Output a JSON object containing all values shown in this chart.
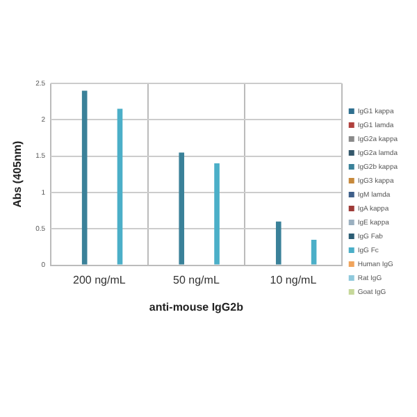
{
  "chart_data": {
    "type": "bar",
    "xlabel": "anti-mouse IgG2b",
    "ylabel": "Abs (405nm)",
    "categories": [
      "200 ng/mL",
      "50 ng/mL",
      "10 ng/mL"
    ],
    "ylim": [
      0,
      2.5
    ],
    "yticks": [
      0,
      0.5,
      1,
      1.5,
      2,
      2.5
    ],
    "grid": true,
    "legend": "right",
    "series": [
      {
        "name": "IgG1 kappa",
        "color": "#2f6f8f",
        "values": [
          0,
          0,
          0
        ]
      },
      {
        "name": "IgG1 lamda",
        "color": "#b0413e",
        "values": [
          0,
          0,
          0
        ]
      },
      {
        "name": "IgG2a kappa",
        "color": "#8a8a8a",
        "values": [
          0,
          0,
          0
        ]
      },
      {
        "name": "IgG2a lamda",
        "color": "#35586b",
        "values": [
          0,
          0,
          0
        ]
      },
      {
        "name": "IgG2b kappa",
        "color": "#3a8199",
        "values": [
          2.4,
          1.55,
          0.6
        ]
      },
      {
        "name": "IgG3 kappa",
        "color": "#c7893c",
        "values": [
          0,
          0,
          0
        ]
      },
      {
        "name": "IgM lamda",
        "color": "#3e5f8a",
        "values": [
          0,
          0,
          0
        ]
      },
      {
        "name": "IgA kappa",
        "color": "#9e3b38",
        "values": [
          0,
          0,
          0
        ]
      },
      {
        "name": "IgE kappa",
        "color": "#9bb0c0",
        "values": [
          0,
          0,
          0
        ]
      },
      {
        "name": "IgG Fab",
        "color": "#2c5d74",
        "values": [
          0,
          0,
          0
        ]
      },
      {
        "name": "IgG Fc",
        "color": "#4bafc8",
        "values": [
          2.15,
          1.4,
          0.35
        ]
      },
      {
        "name": "Human IgG",
        "color": "#f0a45c",
        "values": [
          0,
          0,
          0
        ]
      },
      {
        "name": "Rat IgG",
        "color": "#8fc9dc",
        "values": [
          0,
          0,
          0
        ]
      },
      {
        "name": "Goat IgG",
        "color": "#c6d89a",
        "values": [
          0,
          0,
          0
        ]
      }
    ]
  }
}
